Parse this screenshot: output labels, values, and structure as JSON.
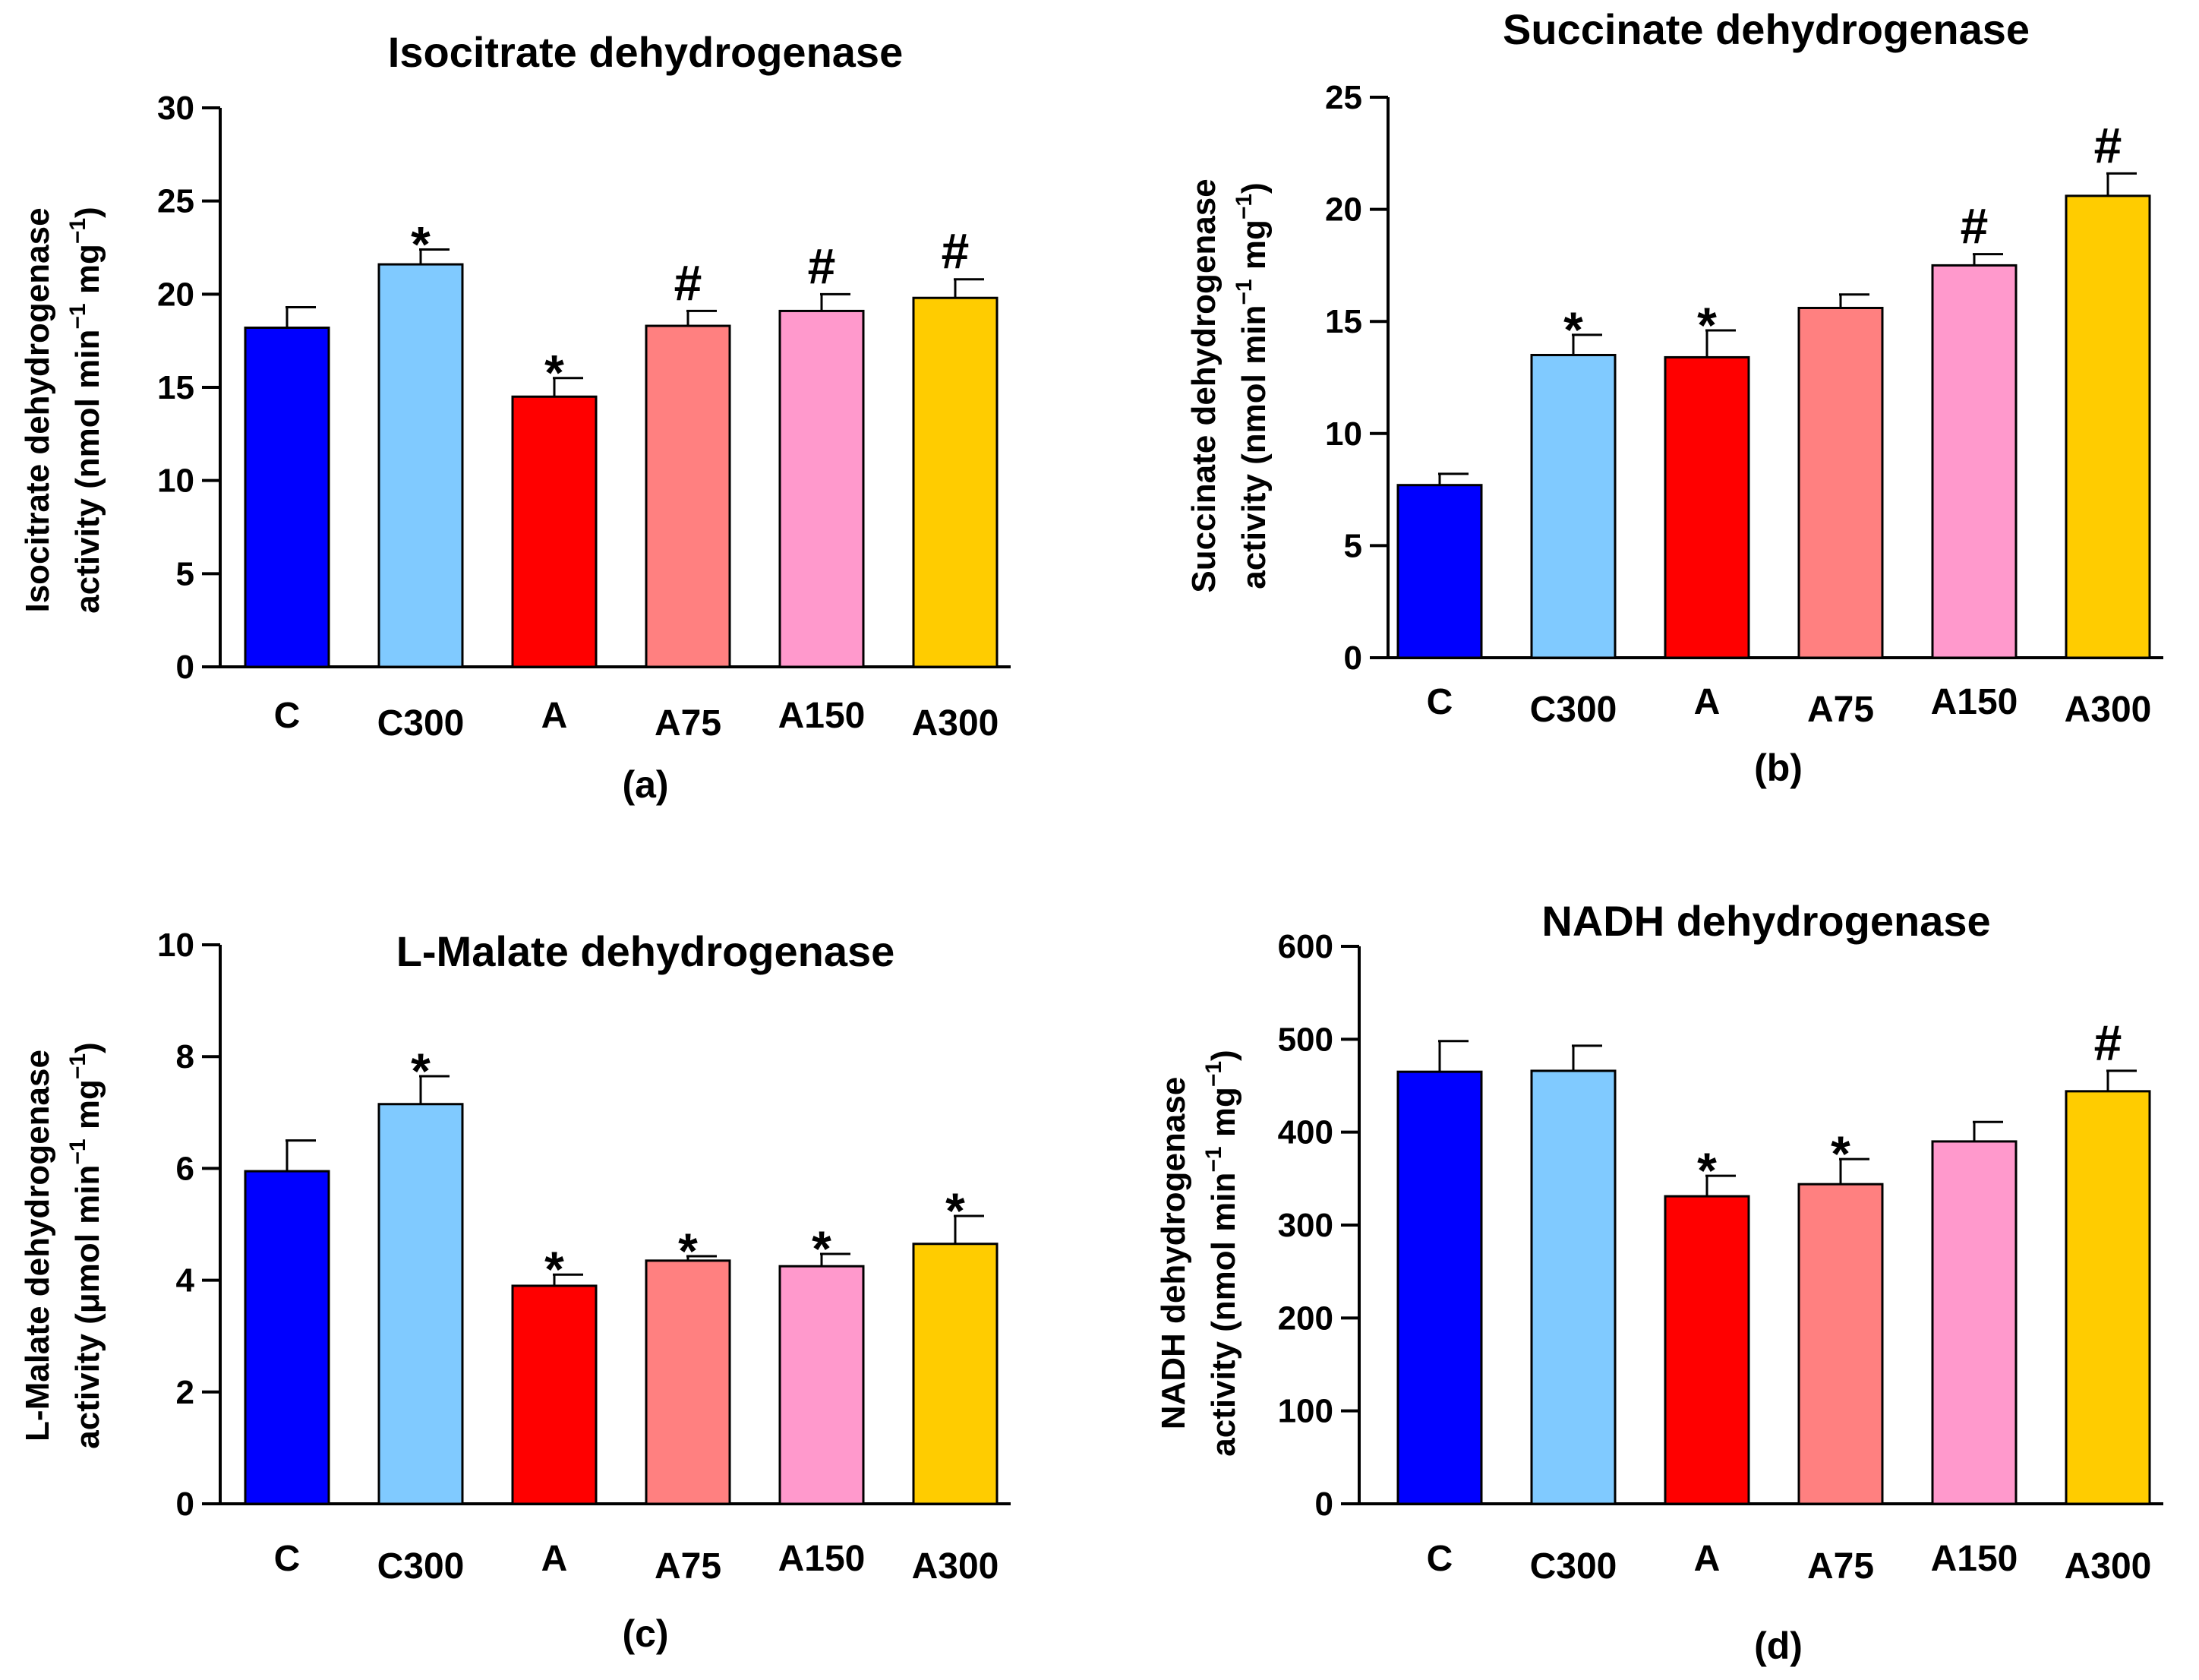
{
  "figure": {
    "colors": [
      "#0000ff",
      "#80caff",
      "#ff0000",
      "#ff8080",
      "#ff99cc",
      "#ffcc00"
    ],
    "panels": [
      {
        "panel_label": "(a)",
        "ylabel_line1": "Isocitrate dehydrogenase",
        "ylabel_line2_prefix": "activity (nmol min",
        "ylabel_line2_mid": " mg",
        "ylabel_line2_suffix": ")",
        "ylabel_exponent": "−1"
      },
      {
        "panel_label": "(b)",
        "ylabel_line1": "Succinate dehydrogenase",
        "ylabel_line2_prefix": "activity (nmol min",
        "ylabel_line2_mid": " mg",
        "ylabel_line2_suffix": ")",
        "ylabel_exponent": "−1"
      },
      {
        "panel_label": "(c)",
        "ylabel_line1": "L-Malate dehydrogenase",
        "ylabel_line2_prefix": "activity (μmol min",
        "ylabel_line2_mid": " mg",
        "ylabel_line2_suffix": ")",
        "ylabel_exponent": "−1"
      },
      {
        "panel_label": "(d)",
        "ylabel_line1": "NADH dehydrogenase",
        "ylabel_line2_prefix": "activity (nmol min",
        "ylabel_line2_mid": " mg",
        "ylabel_line2_suffix": ")",
        "ylabel_exponent": "−1"
      }
    ]
  },
  "chart_data": [
    {
      "type": "bar",
      "title": "Isocitrate dehydrogenase",
      "xlabel": "",
      "ylabel": "Isocitrate dehydrogenase activity (nmol min−1 mg−1)",
      "categories": [
        "C",
        "C300",
        "A",
        "A75",
        "A150",
        "A300"
      ],
      "values": [
        18.2,
        21.6,
        14.5,
        18.3,
        19.1,
        19.8
      ],
      "errors": [
        1.1,
        0.8,
        1.0,
        0.8,
        0.9,
        1.0
      ],
      "markers": [
        "",
        "*",
        "*",
        "#",
        "#",
        "#"
      ],
      "ylim": [
        0,
        30
      ],
      "yticks": [
        0,
        5,
        10,
        15,
        20,
        25,
        30
      ]
    },
    {
      "type": "bar",
      "title": "Succinate dehydrogenase",
      "xlabel": "",
      "ylabel": "Succinate dehydrogenase activity (nmol min−1 mg−1)",
      "categories": [
        "C",
        "C300",
        "A",
        "A75",
        "A150",
        "A300"
      ],
      "values": [
        7.7,
        13.5,
        13.4,
        15.6,
        17.5,
        20.6
      ],
      "errors": [
        0.5,
        0.9,
        1.2,
        0.6,
        0.5,
        1.0
      ],
      "markers": [
        "",
        "*",
        "*",
        "",
        "#",
        "#"
      ],
      "ylim": [
        0,
        25
      ],
      "yticks": [
        0,
        5,
        10,
        15,
        20,
        25
      ]
    },
    {
      "type": "bar",
      "title": "L-Malate dehydrogenase",
      "xlabel": "",
      "ylabel": "L-Malate dehydrogenase activity (μmol min−1 mg−1)",
      "categories": [
        "C",
        "C300",
        "A",
        "A75",
        "A150",
        "A300"
      ],
      "values": [
        5.95,
        7.15,
        3.9,
        4.35,
        4.25,
        4.65
      ],
      "errors": [
        0.55,
        0.5,
        0.2,
        0.08,
        0.22,
        0.5
      ],
      "markers": [
        "",
        "*",
        "*",
        "*",
        "*",
        "*"
      ],
      "ylim": [
        0,
        10
      ],
      "yticks": [
        0,
        2,
        4,
        6,
        8,
        10
      ]
    },
    {
      "type": "bar",
      "title": "NADH dehydrogenase",
      "xlabel": "",
      "ylabel": "NADH dehydrogenase activity (nmol min−1 mg−1)",
      "categories": [
        "C",
        "C300",
        "A",
        "A75",
        "A150",
        "A300"
      ],
      "values": [
        465,
        466,
        331,
        344,
        390,
        444
      ],
      "errors": [
        33,
        27,
        22,
        27,
        21,
        22
      ],
      "markers": [
        "",
        "",
        "*",
        "*",
        "",
        "#"
      ],
      "ylim": [
        0,
        600
      ],
      "yticks": [
        0,
        100,
        200,
        300,
        400,
        500,
        600
      ]
    }
  ]
}
